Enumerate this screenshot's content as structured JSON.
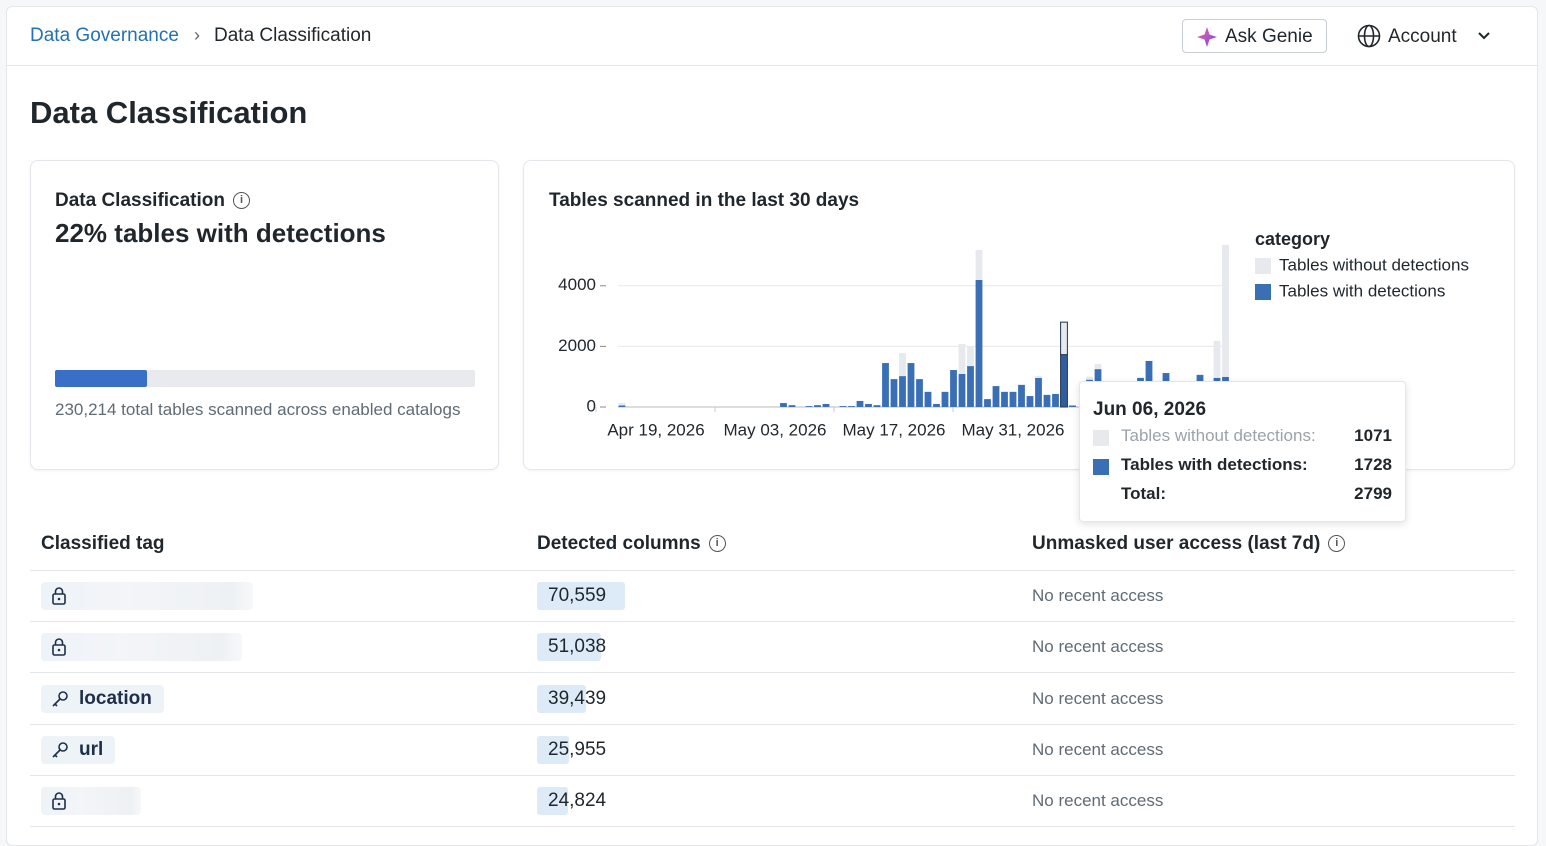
{
  "breadcrumb": {
    "parent": "Data Governance",
    "current": "Data Classification"
  },
  "actions": {
    "ask": "Ask Genie",
    "account": "Account"
  },
  "page_title": "Data Classification",
  "summary_card": {
    "title": "Data Classification",
    "detections_share": 22,
    "detections_share_label": "22%",
    "headline": "tables with detections",
    "note": "230,214 total tables scanned across enabled catalogs"
  },
  "chart_data": {
    "type": "stacked-bar",
    "title": "Tables scanned in the last 30 days",
    "legend_title": "category",
    "legend": "top-right",
    "x": [
      "Apr 15, 2026",
      "May 04, 2026",
      "May 05, 2026",
      "May 07, 2026",
      "May 08, 2026",
      "May 09, 2026",
      "May 11, 2026",
      "May 12, 2026",
      "May 13, 2026",
      "May 14, 2026",
      "May 15, 2026",
      "May 16, 2026",
      "May 17, 2026",
      "May 18, 2026",
      "May 19, 2026",
      "May 20, 2026",
      "May 21, 2026",
      "May 22, 2026",
      "May 23, 2026",
      "May 24, 2026",
      "May 25, 2026",
      "May 26, 2026",
      "May 27, 2026",
      "May 28, 2026",
      "May 29, 2026",
      "May 30, 2026",
      "May 31, 2026",
      "Jun 01, 2026",
      "Jun 02, 2026",
      "Jun 03, 2026",
      "Jun 04, 2026",
      "Jun 05, 2026",
      "Jun 06, 2026",
      "Jun 07, 2026",
      "Jun 09, 2026",
      "Jun 10, 2026",
      "Jun 15, 2026",
      "Jun 16, 2026",
      "Jun 18, 2026",
      "Jun 22, 2026",
      "Jun 24, 2026",
      "Jun 25, 2026"
    ],
    "series": [
      {
        "name": "Tables without detections",
        "color": "#e6e9ed",
        "values": [
          80,
          0,
          0,
          0,
          0,
          0,
          0,
          0,
          0,
          0,
          0,
          0,
          0,
          760,
          0,
          0,
          0,
          0,
          0,
          0,
          990,
          630,
          990,
          0,
          0,
          0,
          0,
          0,
          0,
          60,
          0,
          0,
          1071,
          0,
          100,
          170,
          0,
          0,
          0,
          0,
          1220,
          4360
        ]
      },
      {
        "name": "Tables with detections",
        "color": "#3a6fb5",
        "values": [
          50,
          130,
          60,
          30,
          60,
          100,
          30,
          30,
          200,
          100,
          60,
          1450,
          920,
          1020,
          1450,
          920,
          500,
          100,
          500,
          1220,
          1090,
          1350,
          4190,
          260,
          690,
          500,
          500,
          730,
          360,
          960,
          400,
          430,
          1728,
          50,
          900,
          1250,
          960,
          1520,
          1120,
          1060,
          960,
          990
        ]
      }
    ],
    "xlim": [
      "Apr 14, 2026",
      "Jun 26, 2026"
    ],
    "xticks": [
      "Apr 19, 2026",
      "May 03, 2026",
      "May 17, 2026",
      "May 31, 2026"
    ],
    "ylim": [
      0,
      5500
    ],
    "yticks": [
      0,
      2000,
      4000
    ],
    "grid": true,
    "tooltip": {
      "date": "Jun 06, 2026",
      "index": 32,
      "labels": [
        "Tables without detections:",
        "Tables with detections:"
      ],
      "total_label": "Total:",
      "total": 2799
    }
  },
  "table": {
    "headers": [
      "Classified tag",
      "Detected columns",
      "Unmasked user access (last 7d)"
    ],
    "rows": [
      {
        "tag": null,
        "columns": 70559,
        "columns_label": "70,559",
        "access": "No recent access"
      },
      {
        "tag": null,
        "columns": 51038,
        "columns_label": "51,038",
        "access": "No recent access"
      },
      {
        "tag": "location",
        "columns": 39439,
        "columns_label": "39,439",
        "access": "No recent access"
      },
      {
        "tag": "url",
        "columns": 25955,
        "columns_label": "25,955",
        "access": "No recent access"
      },
      {
        "tag": null,
        "columns": 24824,
        "columns_label": "24,824",
        "access": "No recent access"
      }
    ]
  }
}
